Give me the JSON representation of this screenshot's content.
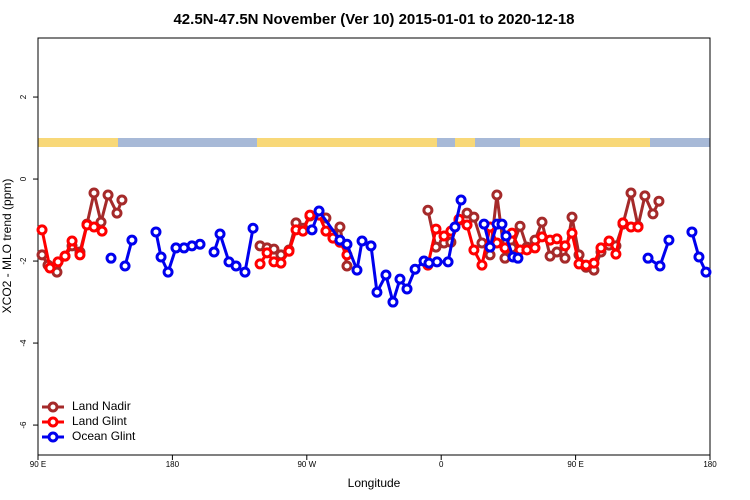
{
  "chart_data": {
    "type": "line",
    "title": "42.5N-47.5N November (Ver 10)   2015-01-01 to 2020-12-18",
    "x_label": "Longitude",
    "y_label": "XCO2 - MLO trend (ppm)",
    "xlim": [
      90,
      540
    ],
    "xticks": [
      {
        "value": 90,
        "label": "90 E"
      },
      180,
      {
        "value": 270,
        "label": "90 W"
      },
      {
        "value": 360,
        "label": "0"
      },
      {
        "value": 450,
        "label": "90 E"
      },
      180
    ],
    "ylim": [
      -6.73,
      3.44
    ],
    "yticks": [
      -6,
      -4,
      -2,
      0,
      2
    ],
    "legend": "bottomleft",
    "series": [
      {
        "name": "Land Nadir",
        "color": "#a52a2a",
        "x": [
          92.7,
          96.7,
          102.7,
          108.1,
          112.8,
          118.1,
          122.8,
          127.5,
          132.2,
          136.9,
          142.9,
          146.2,
          null,
          238.7,
          243.4,
          248,
          252.7,
          258.1,
          262.8,
          267.4,
          272.1,
          278.2,
          282.8,
          287.5,
          292.2,
          296.9,
          null,
          351.1,
          356.5,
          361.9,
          366.5,
          371.9,
          377.3,
          381.9,
          387.3,
          392.7,
          397.3,
          402.7,
          407.4,
          412.8,
          417.4,
          422.8,
          427.5,
          432.9,
          437.5,
          442.9,
          447.6,
          452.3,
          457,
          462.3,
          467,
          472.4,
          477,
          481.7,
          487.1,
          491.8,
          496.4,
          501.8,
          505.8
        ],
        "values": [
          -1.85,
          -2.1,
          -2.27,
          -1.88,
          -1.63,
          -1.78,
          -1.1,
          -0.34,
          -1.05,
          -0.39,
          -0.83,
          -0.51,
          null,
          -1.63,
          -1.68,
          -1.71,
          -1.85,
          -1.73,
          -1.07,
          -1.2,
          -0.9,
          -0.83,
          -0.95,
          -1.34,
          -1.17,
          -2.12,
          null,
          -0.76,
          -1.66,
          -1.56,
          -1.54,
          -1.0,
          -0.83,
          -0.93,
          -1.56,
          -1.85,
          -0.39,
          -1.93,
          -1.68,
          -1.15,
          -1.66,
          -1.49,
          -1.05,
          -1.88,
          -1.78,
          -1.93,
          -0.93,
          -1.85,
          -2.15,
          -2.22,
          -1.78,
          -1.61,
          -1.63,
          -1.1,
          -0.34,
          -1.15,
          -0.41,
          -0.85,
          -0.54
        ]
      },
      {
        "name": "Land Glint",
        "color": "#ff0000",
        "x": [
          92.7,
          98,
          103.4,
          108.1,
          112.8,
          118.1,
          122.8,
          127.5,
          132.9,
          null,
          238.7,
          243.4,
          248,
          252.7,
          258.1,
          262.8,
          267.4,
          272.1,
          278.2,
          282.8,
          287.5,
          292.2,
          296.9,
          null,
          351.1,
          356.5,
          361.9,
          366.5,
          371.9,
          377.3,
          381.9,
          387.3,
          392.7,
          397.3,
          402.7,
          407.4,
          412.8,
          417.4,
          422.8,
          427.5,
          432.9,
          437.5,
          442.9,
          447.6,
          452.3,
          457,
          462.3,
          467,
          472.4,
          477,
          481.7,
          487.1,
          491.8
        ],
        "values": [
          -1.24,
          -2.17,
          -2.02,
          -1.88,
          -1.51,
          -1.85,
          -1.12,
          -1.17,
          -1.27,
          null,
          -2.07,
          -1.8,
          -2.02,
          -2.05,
          -1.76,
          -1.24,
          -1.27,
          -0.88,
          -0.88,
          -1.27,
          -1.44,
          -1.54,
          -1.85,
          null,
          -2.1,
          -1.22,
          -1.39,
          -1.27,
          -0.98,
          -1.12,
          -1.73,
          -2.1,
          -1.17,
          -1.56,
          -1.68,
          -1.32,
          -1.73,
          -1.73,
          -1.68,
          -1.41,
          -1.49,
          -1.46,
          -1.63,
          -1.32,
          -2.07,
          -2.1,
          -2.05,
          -1.68,
          -1.51,
          -1.83,
          -1.07,
          -1.17,
          -1.17
        ]
      },
      {
        "name": "Ocean Glint",
        "color": "#0000ee",
        "x": [
          138.9,
          null,
          148.3,
          152.9,
          null,
          169,
          172.4,
          177.1,
          182.4,
          187.8,
          193.1,
          198.5,
          null,
          207.9,
          211.9,
          217.9,
          222.6,
          228.6,
          234,
          null,
          273.5,
          278.2,
          292.2,
          296.9,
          303.6,
          307,
          313,
          317,
          323,
          327.7,
          332.4,
          337.1,
          342.5,
          348.5,
          351.8,
          357.2,
          364.6,
          369.2,
          373.3,
          null,
          388.7,
          392.7,
          397.4,
          400.7,
          403.4,
          408.1,
          411.4,
          null,
          498.5,
          506.5,
          512.5,
          null,
          527.9,
          532.6,
          537.3
        ],
        "values": [
          -1.93,
          null,
          -2.12,
          -1.49,
          null,
          -1.29,
          -1.9,
          -2.27,
          -1.68,
          -1.68,
          -1.63,
          -1.59,
          null,
          -1.78,
          -1.34,
          -2.02,
          -2.12,
          -2.27,
          -1.2,
          null,
          -1.24,
          -0.78,
          -1.49,
          -1.59,
          -2.22,
          -1.51,
          -1.63,
          -2.76,
          -2.34,
          -3.0,
          -2.44,
          -2.68,
          -2.2,
          -2.0,
          -2.05,
          -2.02,
          -2.02,
          -1.17,
          -0.51,
          null,
          -1.1,
          -1.66,
          -1.1,
          -1.1,
          -1.39,
          -1.9,
          -1.93,
          null,
          -1.93,
          -2.12,
          -1.49,
          null,
          -1.29,
          -1.9,
          -2.27
        ]
      }
    ]
  }
}
